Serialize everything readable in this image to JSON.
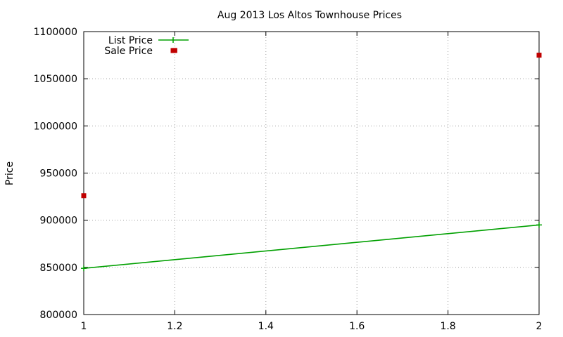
{
  "chart_data": {
    "type": "line",
    "title": "Aug 2013 Los Altos Townhouse Prices",
    "xlabel": "",
    "ylabel": "Price",
    "xlim": [
      1,
      2
    ],
    "ylim": [
      800000,
      1100000
    ],
    "x_ticks": [
      1,
      1.2,
      1.4,
      1.6,
      1.8,
      2
    ],
    "x_tick_labels": [
      "1",
      "1.2",
      "1.4",
      "1.6",
      "1.8",
      "2"
    ],
    "y_ticks": [
      800000,
      850000,
      900000,
      950000,
      1000000,
      1050000,
      1100000
    ],
    "y_tick_labels": [
      "800000",
      "850000",
      "900000",
      "950000",
      "1000000",
      "1050000",
      "1100000"
    ],
    "grid": true,
    "legend_position": "top-left",
    "series": [
      {
        "name": "List Price",
        "style": "line-points",
        "color": "#00a000",
        "x": [
          1,
          2
        ],
        "y": [
          849000,
          895000
        ]
      },
      {
        "name": "Sale Price",
        "style": "points",
        "color": "#c00000",
        "x": [
          1,
          1.2,
          2
        ],
        "y": [
          926000,
          1080000,
          1075000
        ]
      }
    ]
  }
}
